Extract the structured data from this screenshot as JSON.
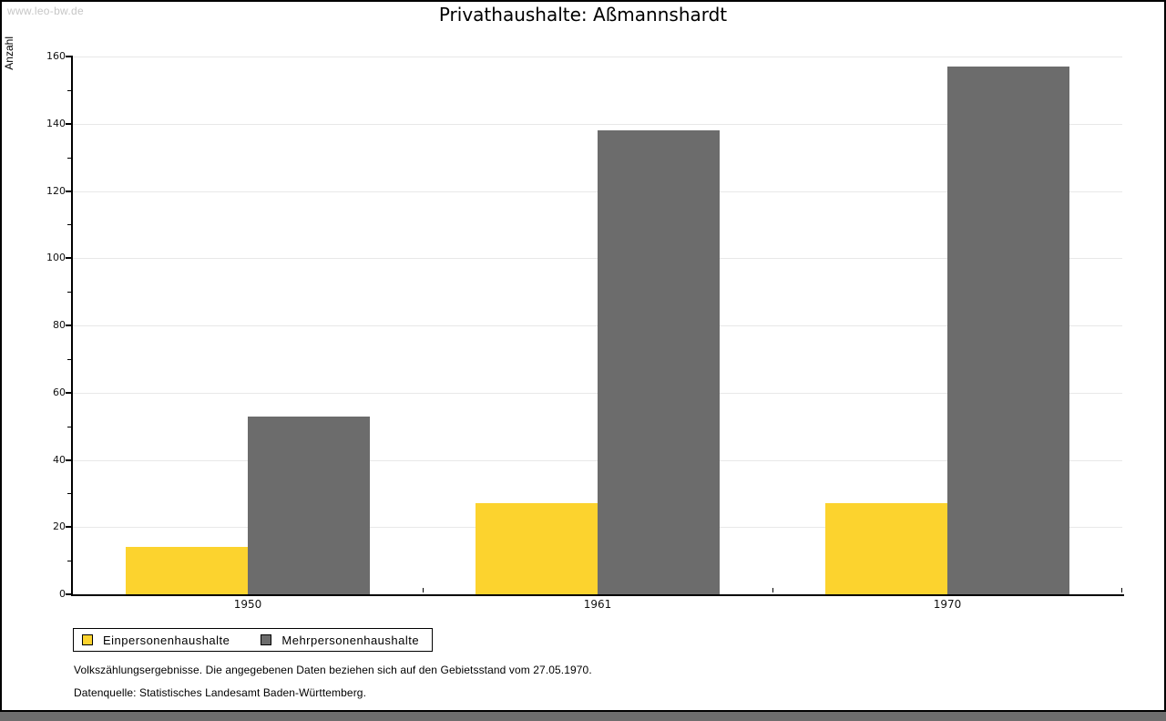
{
  "watermark": "www.leo-bw.de",
  "chart_data": {
    "type": "bar",
    "title": "Privathaushalte: Aßmannshardt",
    "ylabel": "Anzahl",
    "xlabel": "",
    "categories": [
      "1950",
      "1961",
      "1970"
    ],
    "series": [
      {
        "name": "Einpersonenhaushalte",
        "color": "#FCD32E",
        "values": [
          14,
          27,
          27
        ]
      },
      {
        "name": "Mehrpersonenhaushalte",
        "color": "#6C6C6C",
        "values": [
          53,
          138,
          157
        ]
      }
    ],
    "ylim": [
      0,
      160
    ],
    "ytick_step": 20,
    "ytick_minor": 10,
    "grid": "horizontal",
    "legend_position": "bottom-left"
  },
  "footnotes": [
    "Volkszählungsergebnisse. Die angegebenen Daten beziehen sich auf den Gebietsstand vom 27.05.1970.",
    "Datenquelle: Statistisches Landesamt Baden-Württemberg."
  ],
  "colors": {
    "bar_yellow": "#FCD32E",
    "bar_gray": "#6C6C6C",
    "gridline": "#E8E8E8",
    "watermark": "#C6C6C6",
    "frame": "#000000",
    "bottom_strip": "#6E6E6E",
    "background": "#FFFFFF"
  }
}
